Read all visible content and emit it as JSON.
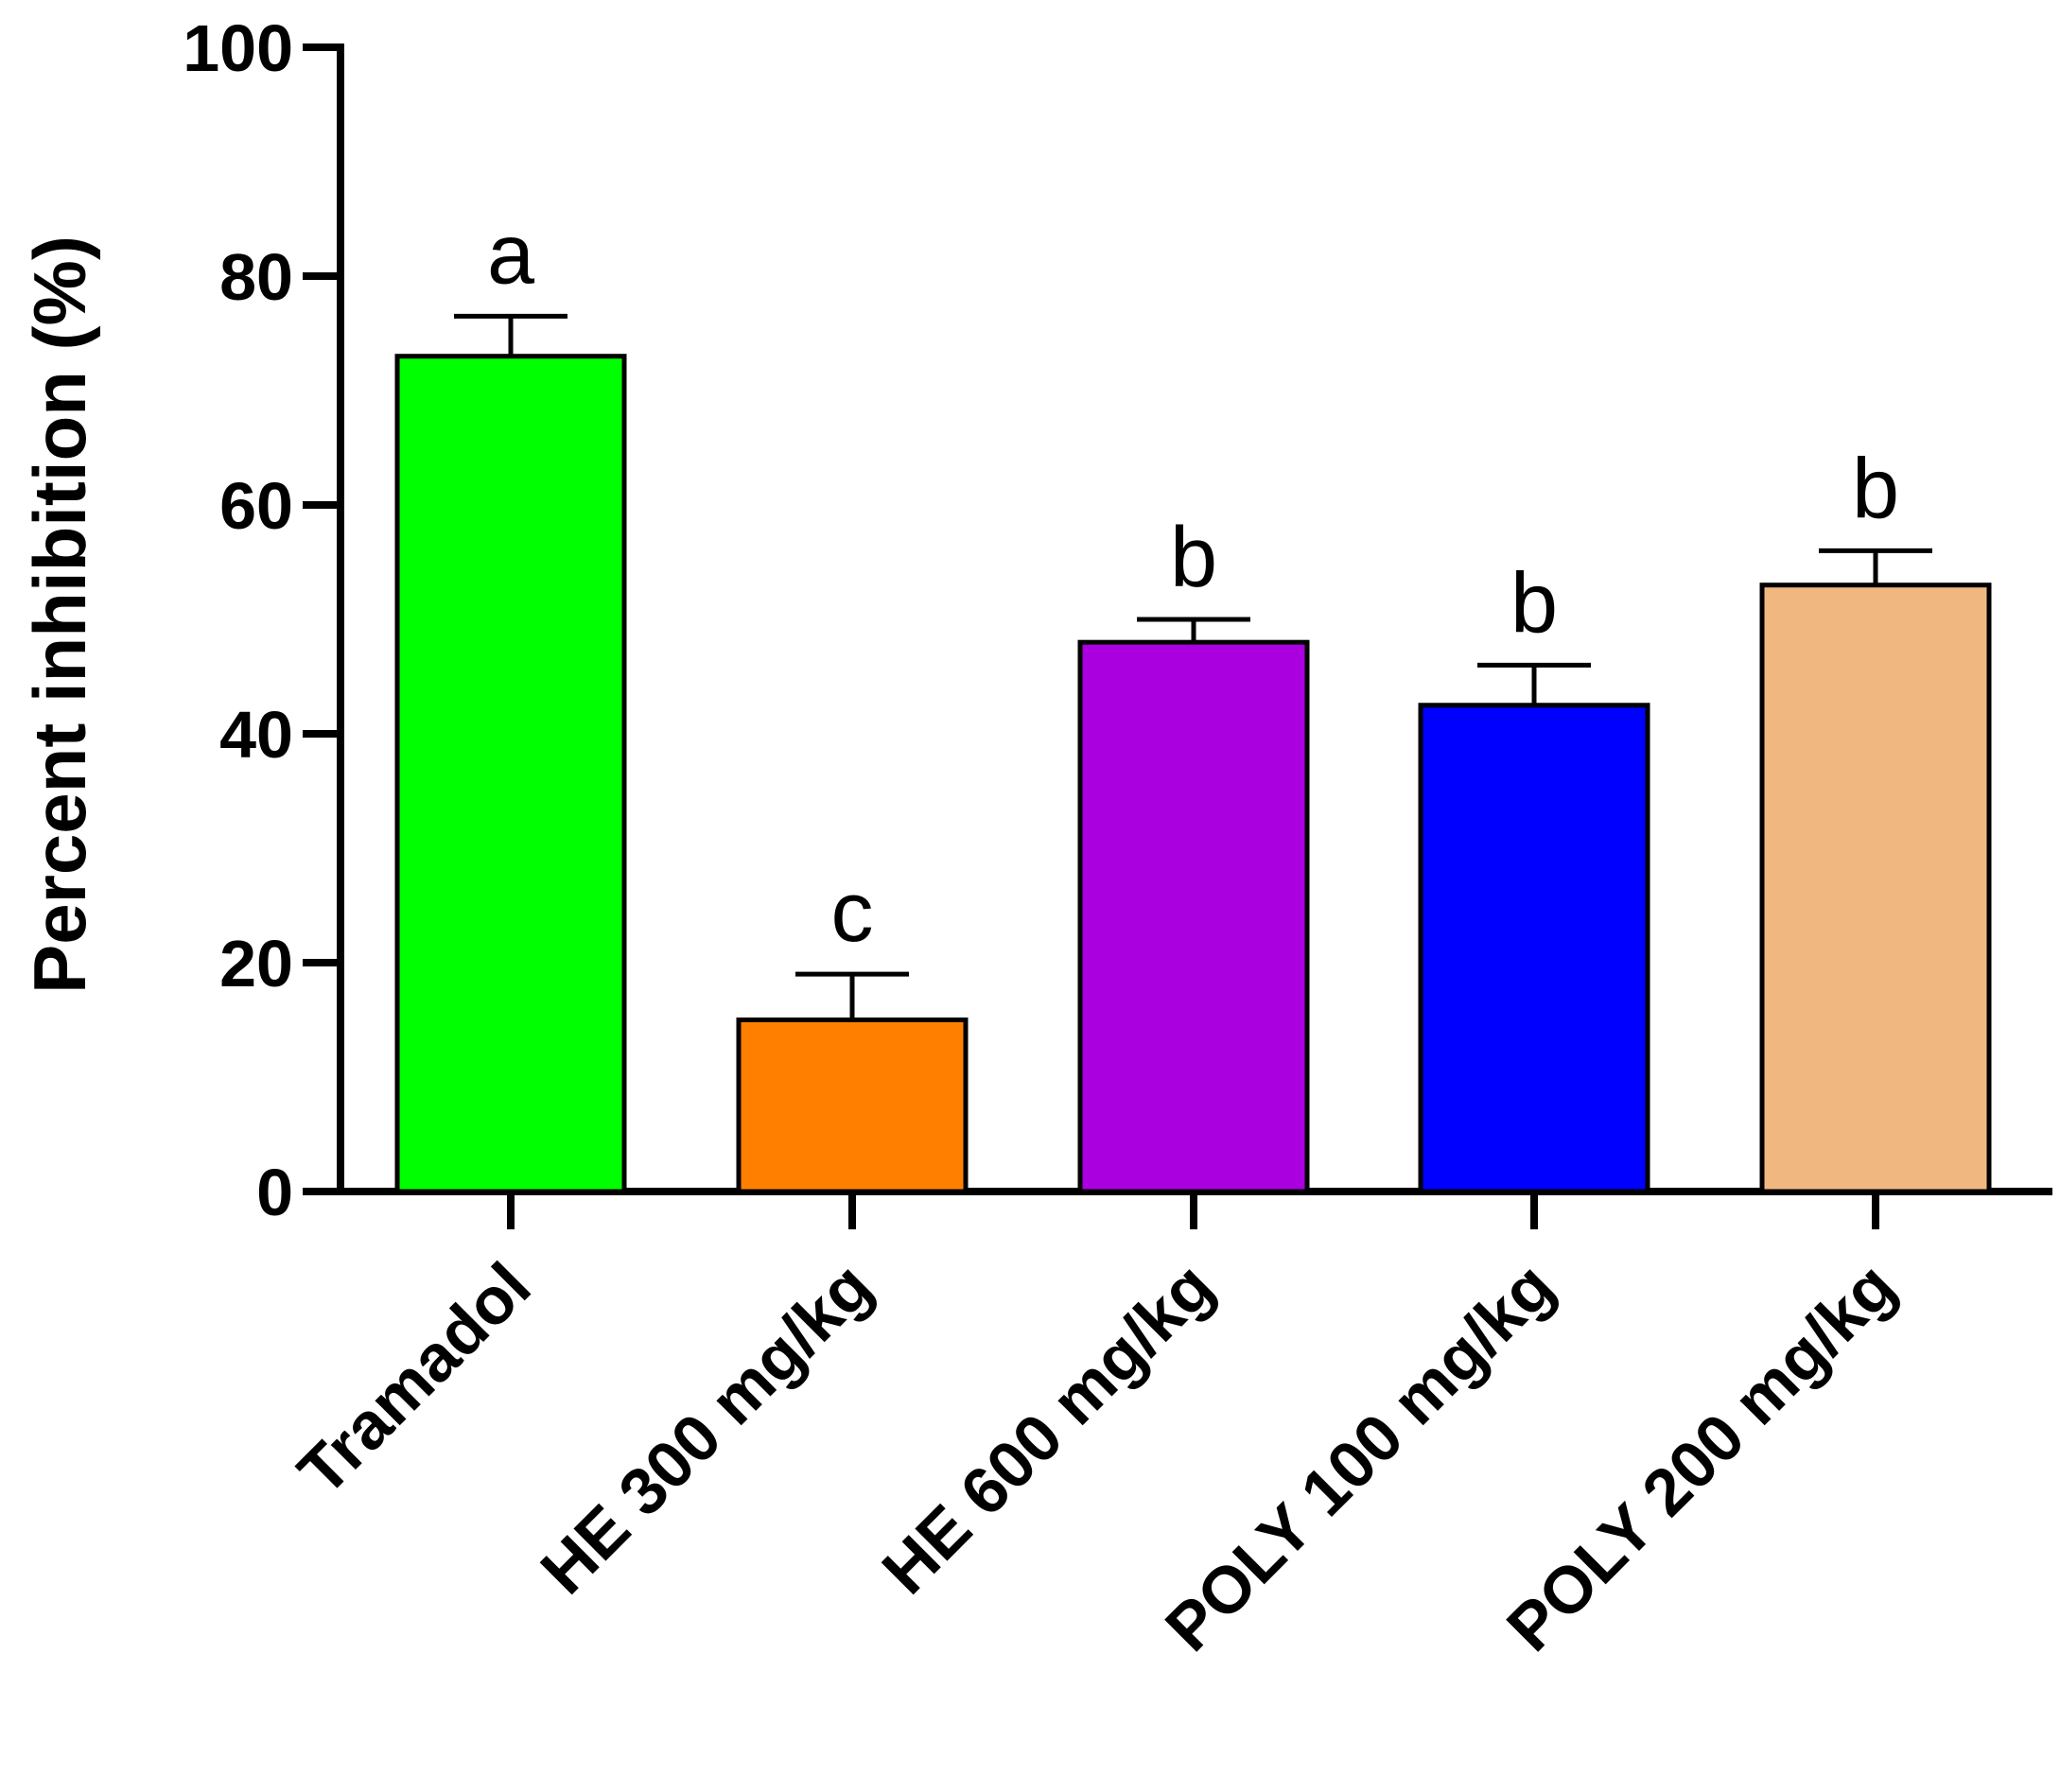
{
  "chart_data": {
    "type": "bar",
    "title": "",
    "xlabel": "",
    "ylabel": "Percent inhibition (%)",
    "ylim": [
      0,
      100
    ],
    "yticks": [
      0,
      20,
      40,
      60,
      80,
      100
    ],
    "categories": [
      "Tramadol",
      "HE 300 mg/kg",
      "HE 600 mg/kg",
      "POLY 100 mg/kg",
      "POLY 200 mg/kg"
    ],
    "values": [
      73,
      15,
      48,
      42.5,
      53
    ],
    "errors": [
      3.5,
      4,
      2,
      3.5,
      3
    ],
    "significance": [
      "a",
      "c",
      "b",
      "b",
      "b"
    ],
    "colors": [
      "#00ff00",
      "#ff8000",
      "#aa00e0",
      "#0000ff",
      "#f0b880"
    ]
  }
}
